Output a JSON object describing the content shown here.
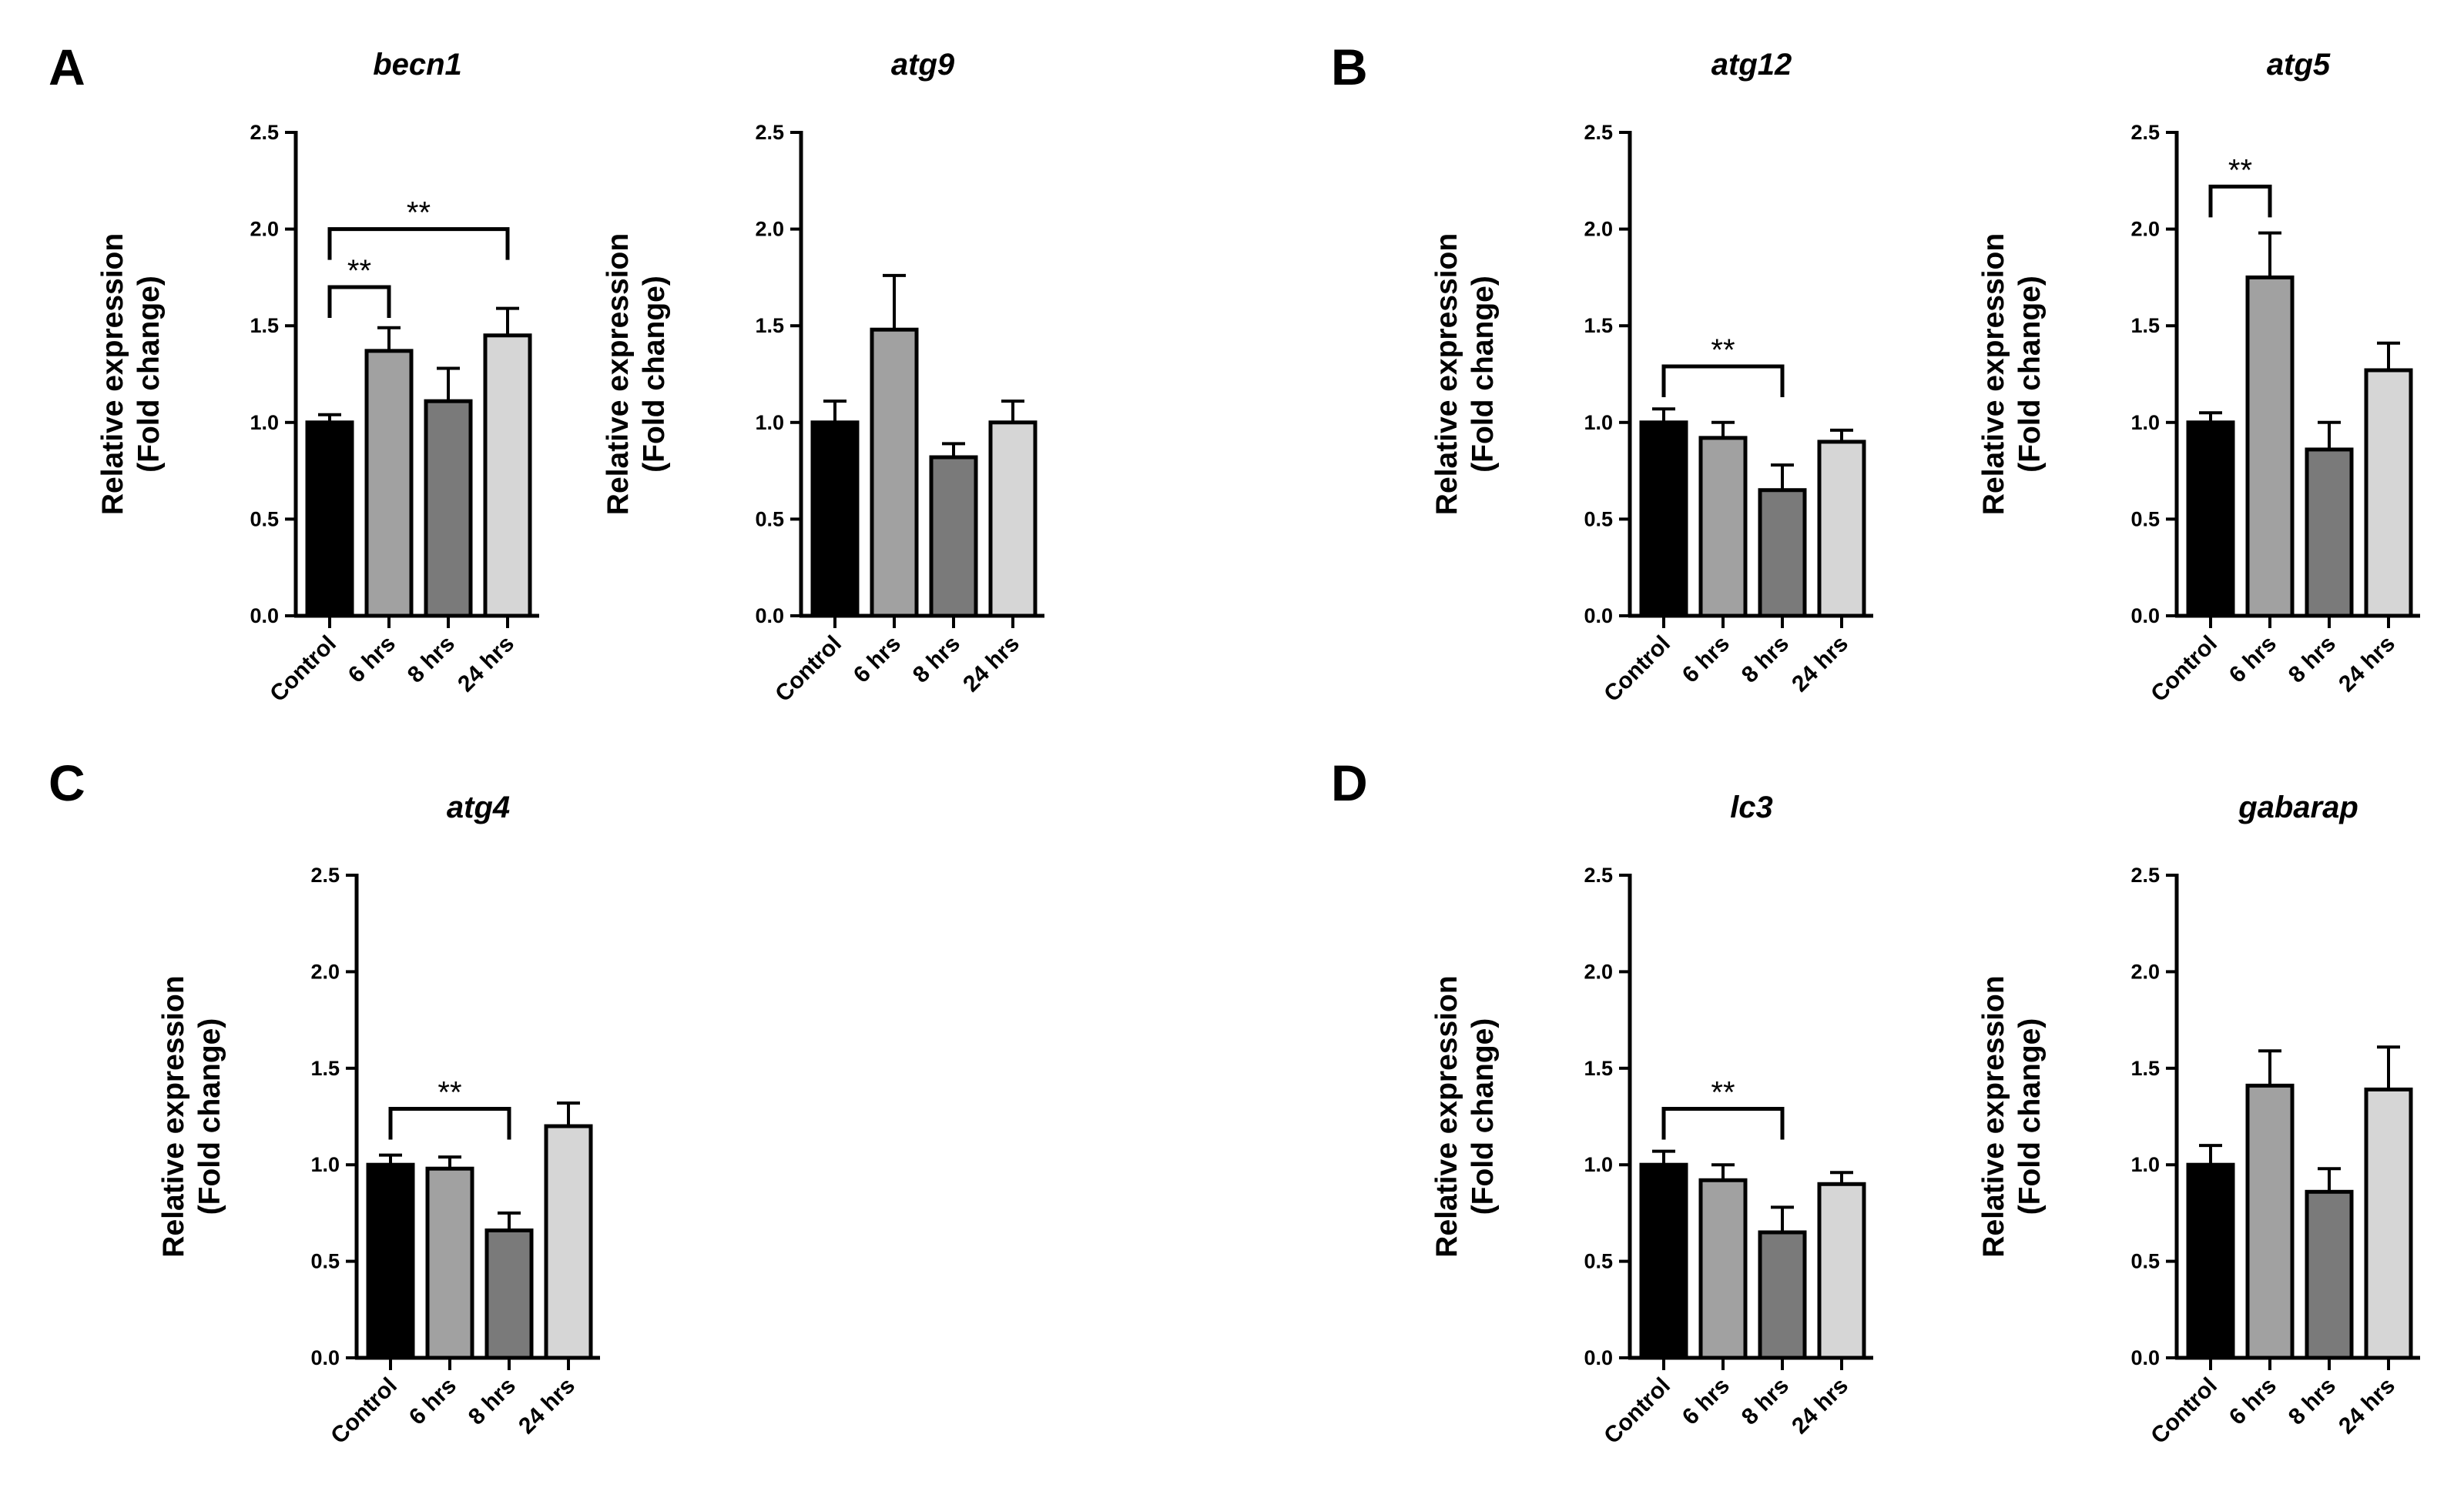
{
  "figure": {
    "panel_letters": [
      "A",
      "B",
      "C",
      "D"
    ]
  },
  "chart_data": [
    {
      "panel": "A",
      "type": "bar",
      "title": "becn1",
      "ylabel": [
        "Relative expression",
        "(Fold change)"
      ],
      "xlabel": "",
      "categories": [
        "Control",
        "6 hrs",
        "8 hrs",
        "24 hrs"
      ],
      "values": [
        1.0,
        1.37,
        1.11,
        1.45
      ],
      "errors": [
        0.04,
        0.12,
        0.17,
        0.14
      ],
      "bar_colors": [
        "#000000",
        "#a1a1a1",
        "#7a7a7a",
        "#d6d6d6"
      ],
      "ylim": [
        0,
        2.5
      ],
      "yticks": [
        "0.0",
        "0.5",
        "1.0",
        "1.5",
        "2.0",
        "2.5"
      ],
      "significance": [
        {
          "from": 0,
          "to": 1,
          "label": "**",
          "y": 1.7
        },
        {
          "from": 0,
          "to": 3,
          "label": "**",
          "y": 2.0
        }
      ]
    },
    {
      "panel": "A",
      "type": "bar",
      "title": "atg9",
      "ylabel": [
        "Relative expression",
        "(Fold change)"
      ],
      "xlabel": "",
      "categories": [
        "Control",
        "6 hrs",
        "8 hrs",
        "24 hrs"
      ],
      "values": [
        1.0,
        1.48,
        0.82,
        1.0
      ],
      "errors": [
        0.11,
        0.28,
        0.07,
        0.11
      ],
      "bar_colors": [
        "#000000",
        "#a1a1a1",
        "#7a7a7a",
        "#d6d6d6"
      ],
      "ylim": [
        0,
        2.5
      ],
      "yticks": [
        "0.0",
        "0.5",
        "1.0",
        "1.5",
        "2.0",
        "2.5"
      ],
      "significance": []
    },
    {
      "panel": "B",
      "type": "bar",
      "title": "atg12",
      "ylabel": [
        "Relative expression",
        "(Fold change)"
      ],
      "xlabel": "",
      "categories": [
        "Control",
        "6 hrs",
        "8 hrs",
        "24 hrs"
      ],
      "values": [
        1.0,
        0.92,
        0.65,
        0.9
      ],
      "errors": [
        0.07,
        0.08,
        0.13,
        0.06
      ],
      "bar_colors": [
        "#000000",
        "#a1a1a1",
        "#7a7a7a",
        "#d6d6d6"
      ],
      "ylim": [
        0,
        2.5
      ],
      "yticks": [
        "0.0",
        "0.5",
        "1.0",
        "1.5",
        "2.0",
        "2.5"
      ],
      "significance": [
        {
          "from": 0,
          "to": 2,
          "label": "**",
          "y": 1.29
        }
      ]
    },
    {
      "panel": "B",
      "type": "bar",
      "title": "atg5",
      "ylabel": [
        "Relative expression",
        "(Fold change)"
      ],
      "xlabel": "",
      "categories": [
        "Control",
        "6 hrs",
        "8 hrs",
        "24 hrs"
      ],
      "values": [
        1.0,
        1.75,
        0.86,
        1.27
      ],
      "errors": [
        0.05,
        0.23,
        0.14,
        0.14
      ],
      "bar_colors": [
        "#000000",
        "#a1a1a1",
        "#7a7a7a",
        "#d6d6d6"
      ],
      "ylim": [
        0,
        2.5
      ],
      "yticks": [
        "0.0",
        "0.5",
        "1.0",
        "1.5",
        "2.0",
        "2.5"
      ],
      "significance": [
        {
          "from": 0,
          "to": 1,
          "label": "**",
          "y": 2.22
        }
      ]
    },
    {
      "panel": "C",
      "type": "bar",
      "title": "atg4",
      "ylabel": [
        "Relative expression",
        "(Fold change)"
      ],
      "xlabel": "",
      "categories": [
        "Control",
        "6 hrs",
        "8 hrs",
        "24 hrs"
      ],
      "values": [
        1.0,
        0.98,
        0.66,
        1.2
      ],
      "errors": [
        0.05,
        0.06,
        0.09,
        0.12
      ],
      "bar_colors": [
        "#000000",
        "#a1a1a1",
        "#7a7a7a",
        "#d6d6d6"
      ],
      "ylim": [
        0,
        2.5
      ],
      "yticks": [
        "0.0",
        "0.5",
        "1.0",
        "1.5",
        "2.0",
        "2.5"
      ],
      "significance": [
        {
          "from": 0,
          "to": 2,
          "label": "**",
          "y": 1.29
        }
      ]
    },
    {
      "panel": "D",
      "type": "bar",
      "title": "lc3",
      "ylabel": [
        "Relative expression",
        "(Fold change)"
      ],
      "xlabel": "",
      "categories": [
        "Control",
        "6 hrs",
        "8 hrs",
        "24 hrs"
      ],
      "values": [
        1.0,
        0.92,
        0.65,
        0.9
      ],
      "errors": [
        0.07,
        0.08,
        0.13,
        0.06
      ],
      "bar_colors": [
        "#000000",
        "#a1a1a1",
        "#7a7a7a",
        "#d6d6d6"
      ],
      "ylim": [
        0,
        2.5
      ],
      "yticks": [
        "0.0",
        "0.5",
        "1.0",
        "1.5",
        "2.0",
        "2.5"
      ],
      "significance": [
        {
          "from": 0,
          "to": 2,
          "label": "**",
          "y": 1.29
        }
      ]
    },
    {
      "panel": "D",
      "type": "bar",
      "title": "gabarap",
      "ylabel": [
        "Relative expression",
        "(Fold change)"
      ],
      "xlabel": "",
      "categories": [
        "Control",
        "6 hrs",
        "8 hrs",
        "24 hrs"
      ],
      "values": [
        1.0,
        1.41,
        0.86,
        1.39
      ],
      "errors": [
        0.1,
        0.18,
        0.12,
        0.22
      ],
      "bar_colors": [
        "#000000",
        "#a1a1a1",
        "#7a7a7a",
        "#d6d6d6"
      ],
      "ylim": [
        0,
        2.5
      ],
      "yticks": [
        "0.0",
        "0.5",
        "1.0",
        "1.5",
        "2.0",
        "2.5"
      ],
      "significance": []
    }
  ]
}
